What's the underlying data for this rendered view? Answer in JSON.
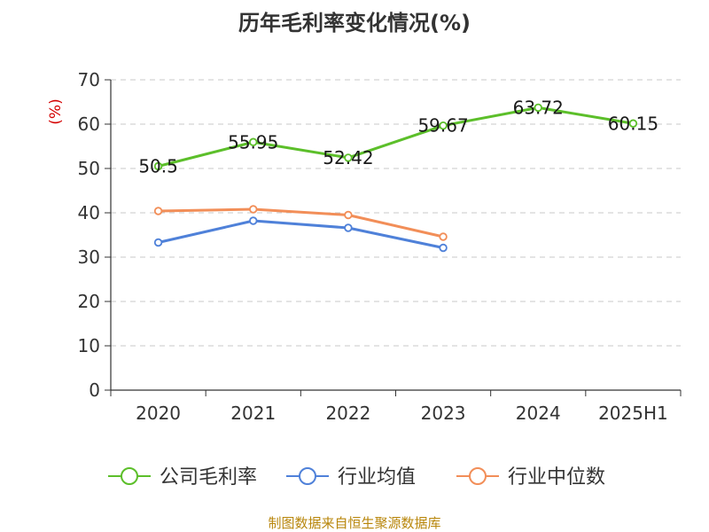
{
  "chart_data": {
    "type": "line",
    "title": "历年毛利率变化情况(%)",
    "ylabel": "(%)",
    "categories": [
      "2020",
      "2021",
      "2022",
      "2023",
      "2024",
      "2025H1"
    ],
    "ylim": [
      0,
      70
    ],
    "yticks": [
      "0",
      "10",
      "20",
      "30",
      "40",
      "50",
      "60",
      "70"
    ],
    "grid": true,
    "legend_position": "bottom",
    "series": [
      {
        "name": "公司毛利率",
        "color": "#5cbf2a",
        "values": [
          50.5,
          55.95,
          52.42,
          59.67,
          63.72,
          60.15
        ],
        "labels": [
          "50.5",
          "55.95",
          "52.42",
          "59.67",
          "63.72",
          "60.15"
        ]
      },
      {
        "name": "行业均值",
        "color": "#4f81d9",
        "values": [
          33.3,
          38.2,
          36.6,
          32.1,
          null,
          null
        ]
      },
      {
        "name": "行业中位数",
        "color": "#f28e58",
        "values": [
          40.4,
          40.8,
          39.5,
          34.6,
          null,
          null
        ]
      }
    ]
  },
  "colors": {
    "ylabel": "#d40000",
    "source": "#b8860b"
  },
  "source": "制图数据来自恒生聚源数据库"
}
